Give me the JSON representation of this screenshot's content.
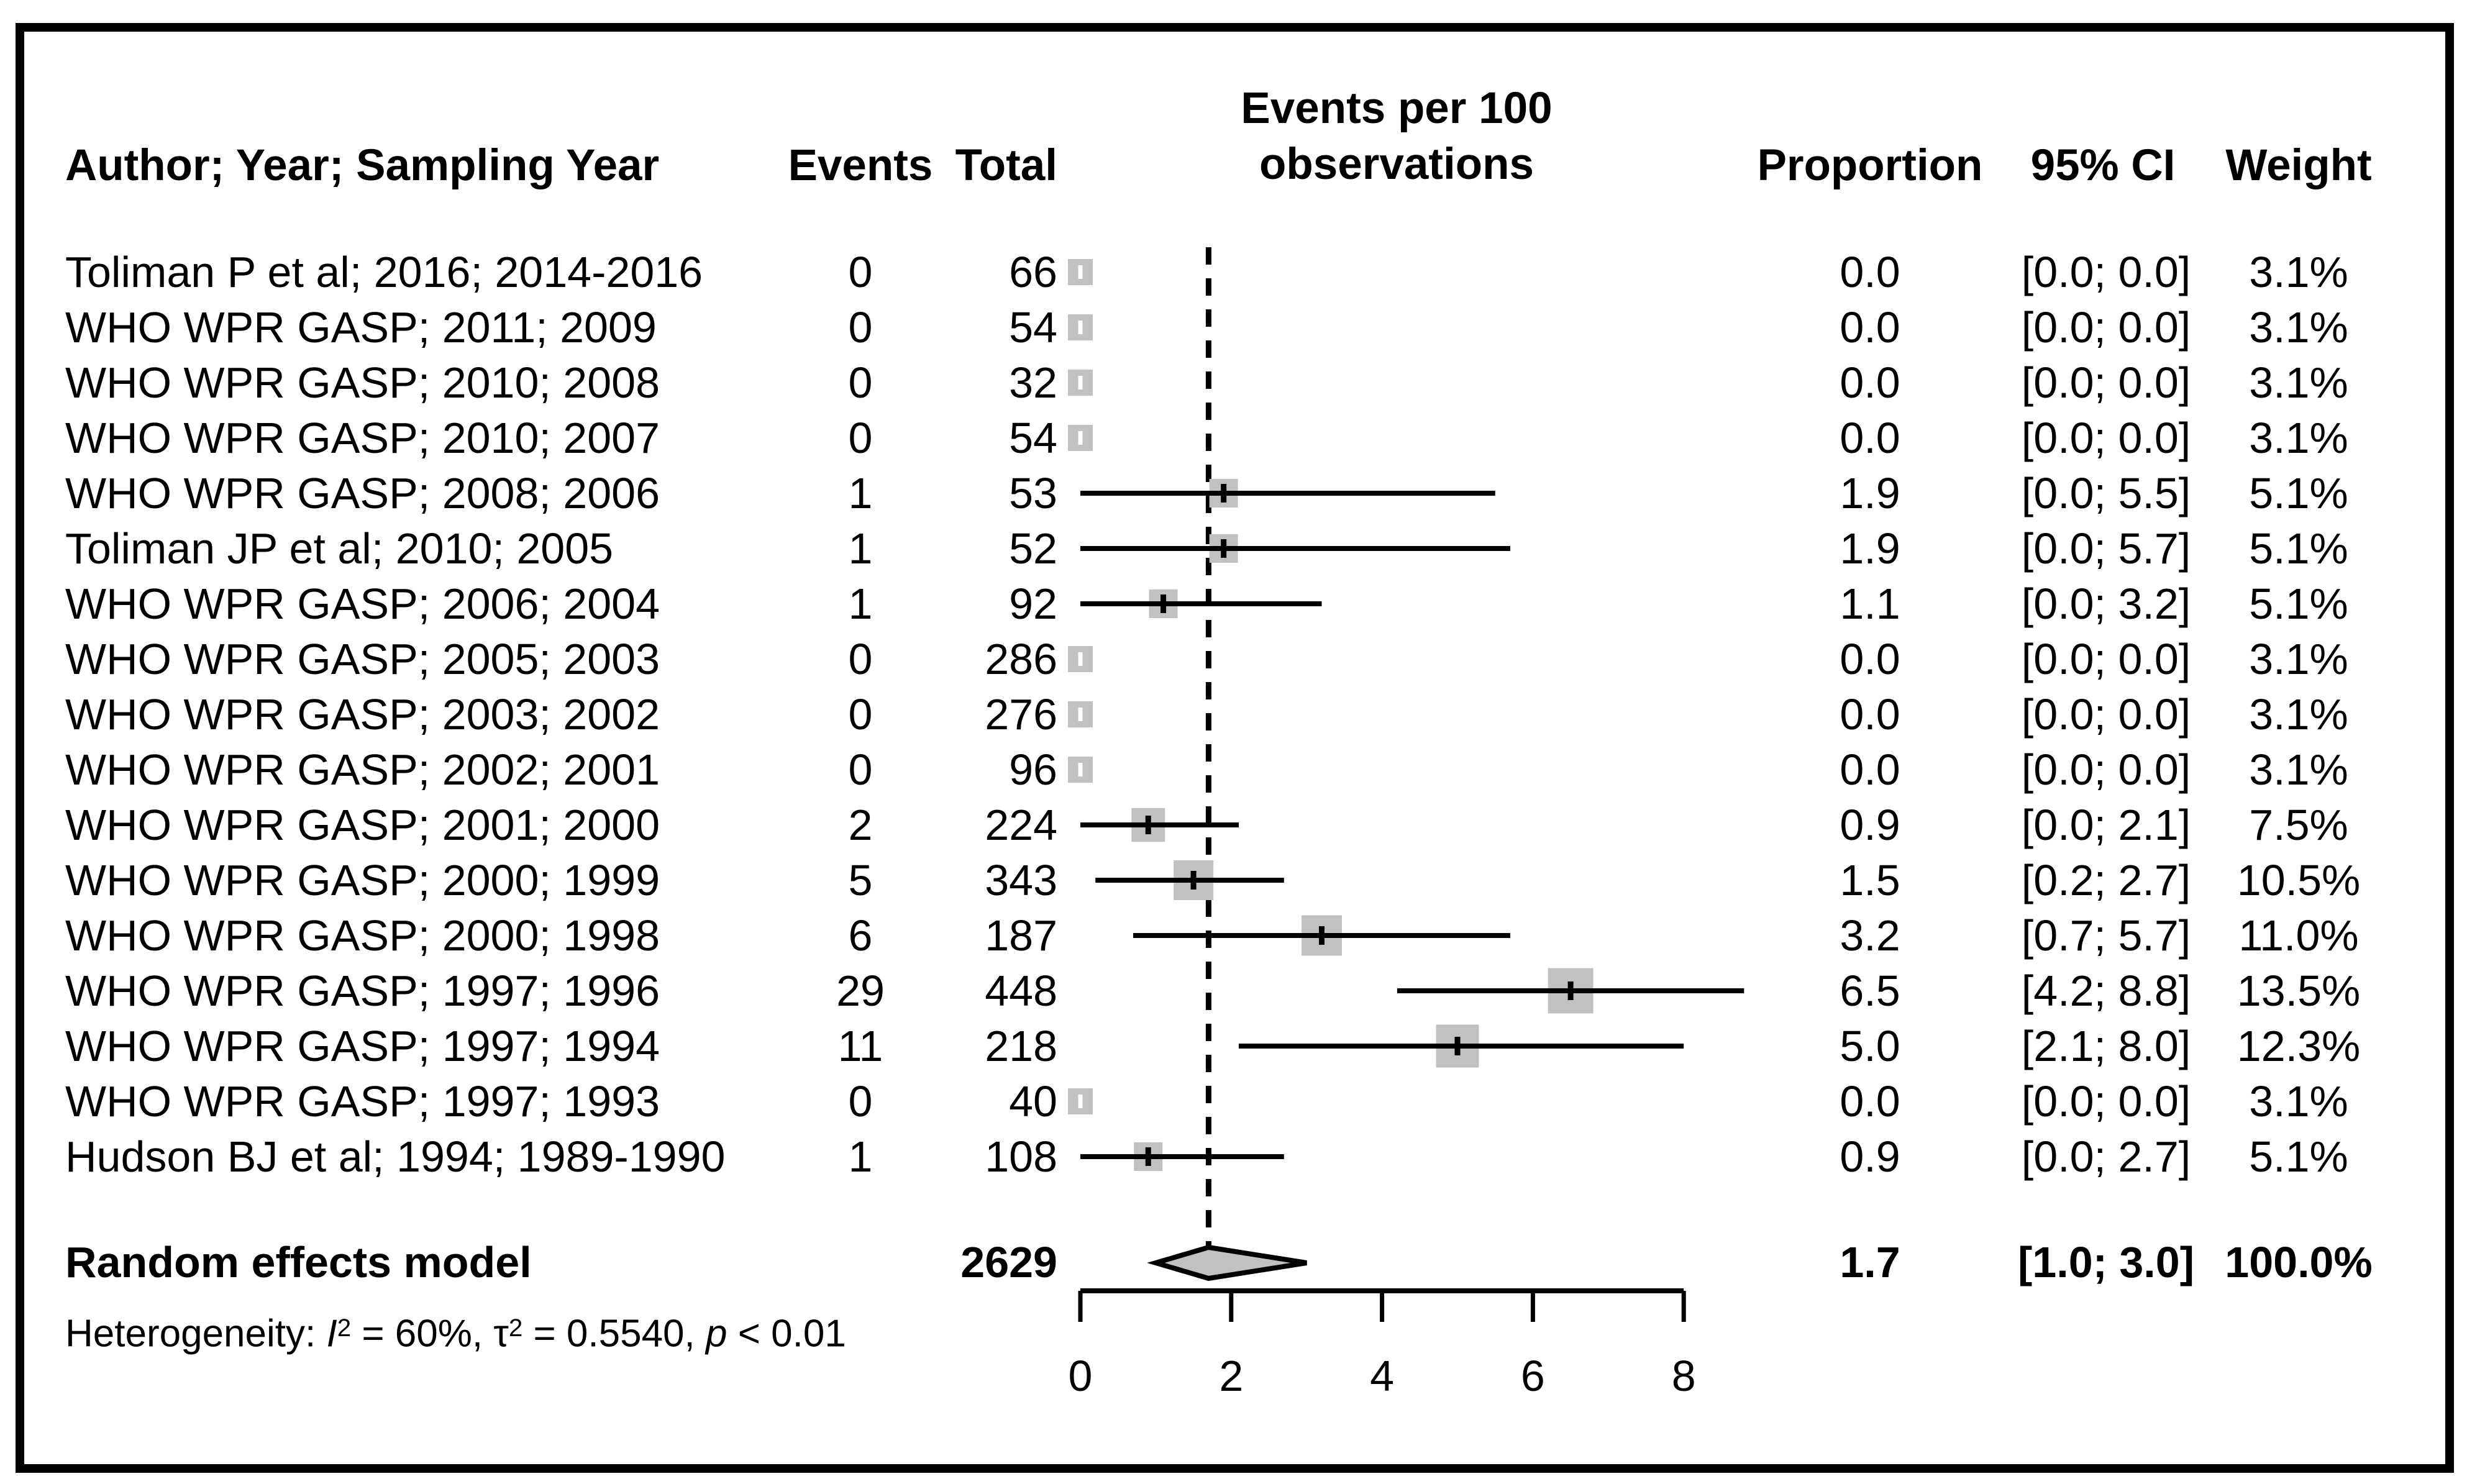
{
  "header": {
    "col_author": "Author; Year; Sampling Year",
    "col_events": "Events",
    "col_total": "Total",
    "col_plot_line1": "Events per 100",
    "col_plot_line2": "observations",
    "col_proportion": "Proportion",
    "col_ci": "95% CI",
    "col_weight": "Weight"
  },
  "chart_data": {
    "type": "forest",
    "title": "Events per 100 observations",
    "x_axis": {
      "range": [
        0,
        8
      ],
      "ticks": [
        0,
        2,
        4,
        6,
        8
      ],
      "tick_labels": [
        "0",
        "2",
        "4",
        "6",
        "8"
      ]
    },
    "reference_line_at": 1.7,
    "studies": [
      {
        "label": "Toliman P et al; 2016; 2014-2016",
        "events": "0",
        "total": "66",
        "proportion": "0.0",
        "ci": "[0.0; 0.0]",
        "weight": "3.1%",
        "point": 0.0,
        "lower": 0.0,
        "upper": 0.0,
        "w": 3.1
      },
      {
        "label": "WHO WPR GASP; 2011; 2009",
        "events": "0",
        "total": "54",
        "proportion": "0.0",
        "ci": "[0.0; 0.0]",
        "weight": "3.1%",
        "point": 0.0,
        "lower": 0.0,
        "upper": 0.0,
        "w": 3.1
      },
      {
        "label": "WHO WPR GASP; 2010; 2008",
        "events": "0",
        "total": "32",
        "proportion": "0.0",
        "ci": "[0.0; 0.0]",
        "weight": "3.1%",
        "point": 0.0,
        "lower": 0.0,
        "upper": 0.0,
        "w": 3.1
      },
      {
        "label": "WHO WPR GASP; 2010; 2007",
        "events": "0",
        "total": "54",
        "proportion": "0.0",
        "ci": "[0.0; 0.0]",
        "weight": "3.1%",
        "point": 0.0,
        "lower": 0.0,
        "upper": 0.0,
        "w": 3.1
      },
      {
        "label": "WHO WPR GASP; 2008; 2006",
        "events": "1",
        "total": "53",
        "proportion": "1.9",
        "ci": "[0.0; 5.5]",
        "weight": "5.1%",
        "point": 1.9,
        "lower": 0.0,
        "upper": 5.5,
        "w": 5.1
      },
      {
        "label": "Toliman JP et al; 2010; 2005",
        "events": "1",
        "total": "52",
        "proportion": "1.9",
        "ci": "[0.0; 5.7]",
        "weight": "5.1%",
        "point": 1.9,
        "lower": 0.0,
        "upper": 5.7,
        "w": 5.1
      },
      {
        "label": "WHO WPR GASP; 2006; 2004",
        "events": "1",
        "total": "92",
        "proportion": "1.1",
        "ci": "[0.0; 3.2]",
        "weight": "5.1%",
        "point": 1.1,
        "lower": 0.0,
        "upper": 3.2,
        "w": 5.1
      },
      {
        "label": "WHO WPR GASP; 2005; 2003",
        "events": "0",
        "total": "286",
        "proportion": "0.0",
        "ci": "[0.0; 0.0]",
        "weight": "3.1%",
        "point": 0.0,
        "lower": 0.0,
        "upper": 0.0,
        "w": 3.1
      },
      {
        "label": "WHO WPR GASP; 2003; 2002",
        "events": "0",
        "total": "276",
        "proportion": "0.0",
        "ci": "[0.0; 0.0]",
        "weight": "3.1%",
        "point": 0.0,
        "lower": 0.0,
        "upper": 0.0,
        "w": 3.1
      },
      {
        "label": "WHO WPR GASP; 2002; 2001",
        "events": "0",
        "total": "96",
        "proportion": "0.0",
        "ci": "[0.0; 0.0]",
        "weight": "3.1%",
        "point": 0.0,
        "lower": 0.0,
        "upper": 0.0,
        "w": 3.1
      },
      {
        "label": "WHO WPR GASP; 2001; 2000",
        "events": "2",
        "total": "224",
        "proportion": "0.9",
        "ci": "[0.0; 2.1]",
        "weight": "7.5%",
        "point": 0.9,
        "lower": 0.0,
        "upper": 2.1,
        "w": 7.5
      },
      {
        "label": "WHO WPR GASP; 2000; 1999",
        "events": "5",
        "total": "343",
        "proportion": "1.5",
        "ci": "[0.2; 2.7]",
        "weight": "10.5%",
        "point": 1.5,
        "lower": 0.2,
        "upper": 2.7,
        "w": 10.5
      },
      {
        "label": "WHO WPR GASP; 2000; 1998",
        "events": "6",
        "total": "187",
        "proportion": "3.2",
        "ci": "[0.7; 5.7]",
        "weight": "11.0%",
        "point": 3.2,
        "lower": 0.7,
        "upper": 5.7,
        "w": 11.0
      },
      {
        "label": "WHO WPR GASP; 1997; 1996",
        "events": "29",
        "total": "448",
        "proportion": "6.5",
        "ci": "[4.2; 8.8]",
        "weight": "13.5%",
        "point": 6.5,
        "lower": 4.2,
        "upper": 8.8,
        "w": 13.5
      },
      {
        "label": "WHO WPR GASP; 1997; 1994",
        "events": "11",
        "total": "218",
        "proportion": "5.0",
        "ci": "[2.1; 8.0]",
        "weight": "12.3%",
        "point": 5.0,
        "lower": 2.1,
        "upper": 8.0,
        "w": 12.3
      },
      {
        "label": "WHO WPR GASP; 1997; 1993",
        "events": "0",
        "total": "40",
        "proportion": "0.0",
        "ci": "[0.0; 0.0]",
        "weight": "3.1%",
        "point": 0.0,
        "lower": 0.0,
        "upper": 0.0,
        "w": 3.1
      },
      {
        "label": "Hudson BJ et al; 1994; 1989-1990",
        "events": "1",
        "total": "108",
        "proportion": "0.9",
        "ci": "[0.0; 2.7]",
        "weight": "5.1%",
        "point": 0.9,
        "lower": 0.0,
        "upper": 2.7,
        "w": 5.1
      }
    ],
    "summary": {
      "label": "Random effects model",
      "total": "2629",
      "proportion": "1.7",
      "ci": "[1.0; 3.0]",
      "weight": "100.0%",
      "point": 1.7,
      "lower": 1.0,
      "upper": 3.0
    },
    "heterogeneity": {
      "prefix": "Heterogeneity: ",
      "i_sym": "I",
      "i_sup": "2",
      "i_val": " = 60%, ",
      "tau_sym": "τ",
      "tau_sup": "2",
      "tau_val": " = 0.5540, ",
      "p_sym": "p",
      "p_val": " < 0.01"
    },
    "colors": {
      "marker_fill": "#c1c1c1",
      "line": "#000000",
      "background": "#ffffff",
      "border": "#000000"
    }
  }
}
